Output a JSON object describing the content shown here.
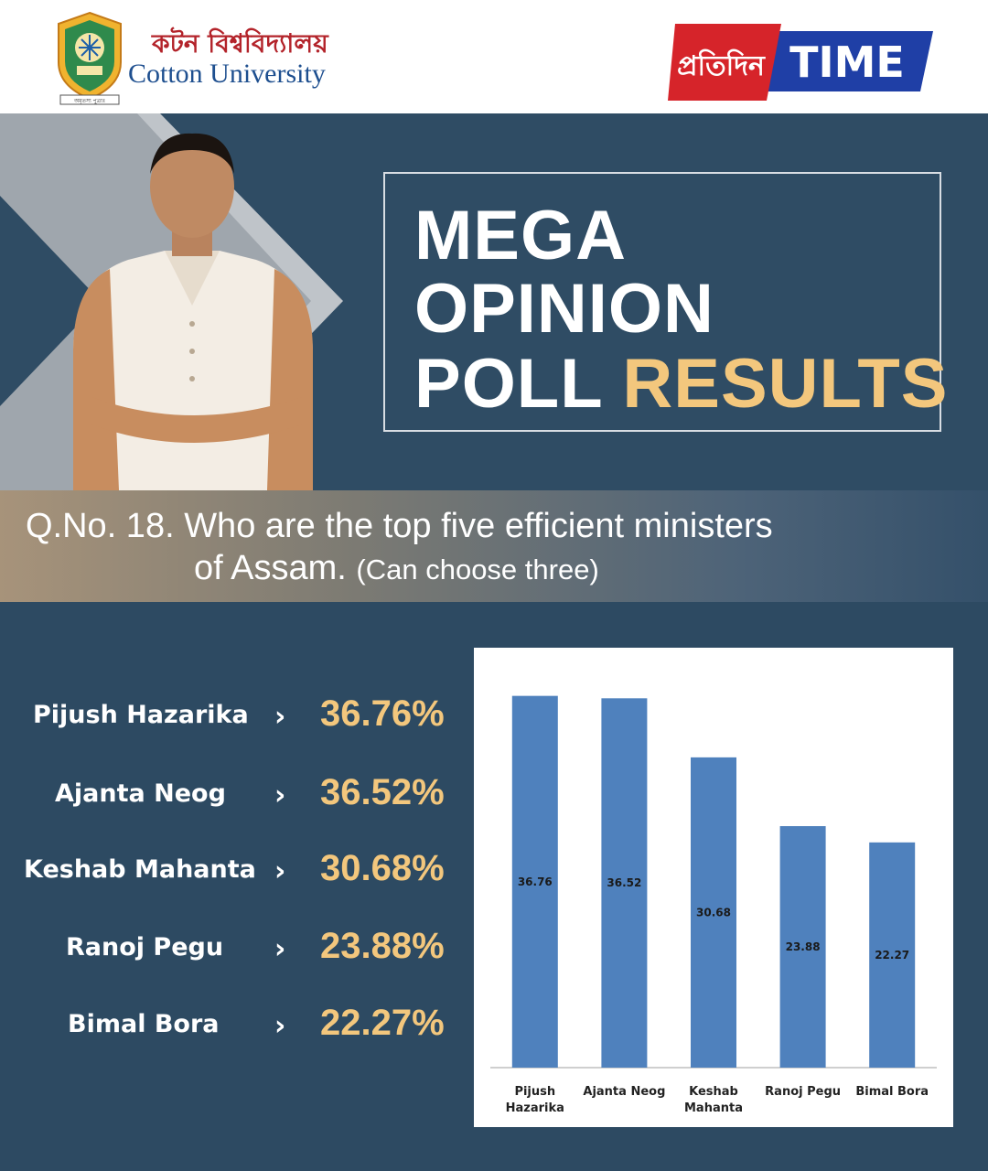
{
  "header": {
    "university_name_bn": "কটন বিশ্ববিদ্যালয়",
    "university_name_en": "Cotton University",
    "university_logo_text": "অমৃতস্য পুত্ৰাঃ",
    "media_logo_bn": "প্ৰতিদিন",
    "media_logo_en": "TIME"
  },
  "hero": {
    "title_line1": "MEGA",
    "title_line2": "OPINION",
    "title_line3a": "POLL ",
    "title_line3b": "RESULTS"
  },
  "question": {
    "line1": "Q.No. 18. Who are the top five efficient ministers",
    "line2": "of Assam.",
    "note": "(Can choose three)"
  },
  "results": [
    {
      "name": "Pijush Hazarika",
      "value": "36.76%"
    },
    {
      "name": "Ajanta Neog",
      "value": "36.52%"
    },
    {
      "name": "Keshab Mahanta",
      "value": "30.68%"
    },
    {
      "name": "Ranoj Pegu",
      "value": "23.88%"
    },
    {
      "name": "Bimal Bora",
      "value": "22.27%"
    }
  ],
  "arrow_glyph": "›",
  "colors": {
    "background": "#2d4a62",
    "accent": "#f3c77d",
    "bar": "#4f81bd"
  },
  "chart_data": {
    "type": "bar",
    "categories": [
      [
        "Pijush",
        "Hazarika"
      ],
      [
        "Ajanta Neog"
      ],
      [
        "Keshab",
        "Mahanta"
      ],
      [
        "Ranoj Pegu"
      ],
      [
        "Bimal Bora"
      ]
    ],
    "values": [
      36.76,
      36.52,
      30.68,
      23.88,
      22.27
    ],
    "data_labels": [
      "36.76",
      "36.52",
      "30.68",
      "23.88",
      "22.27"
    ],
    "ylim": [
      0,
      37
    ],
    "grid": false,
    "legend": "none",
    "title": "",
    "xlabel": "",
    "ylabel": ""
  }
}
